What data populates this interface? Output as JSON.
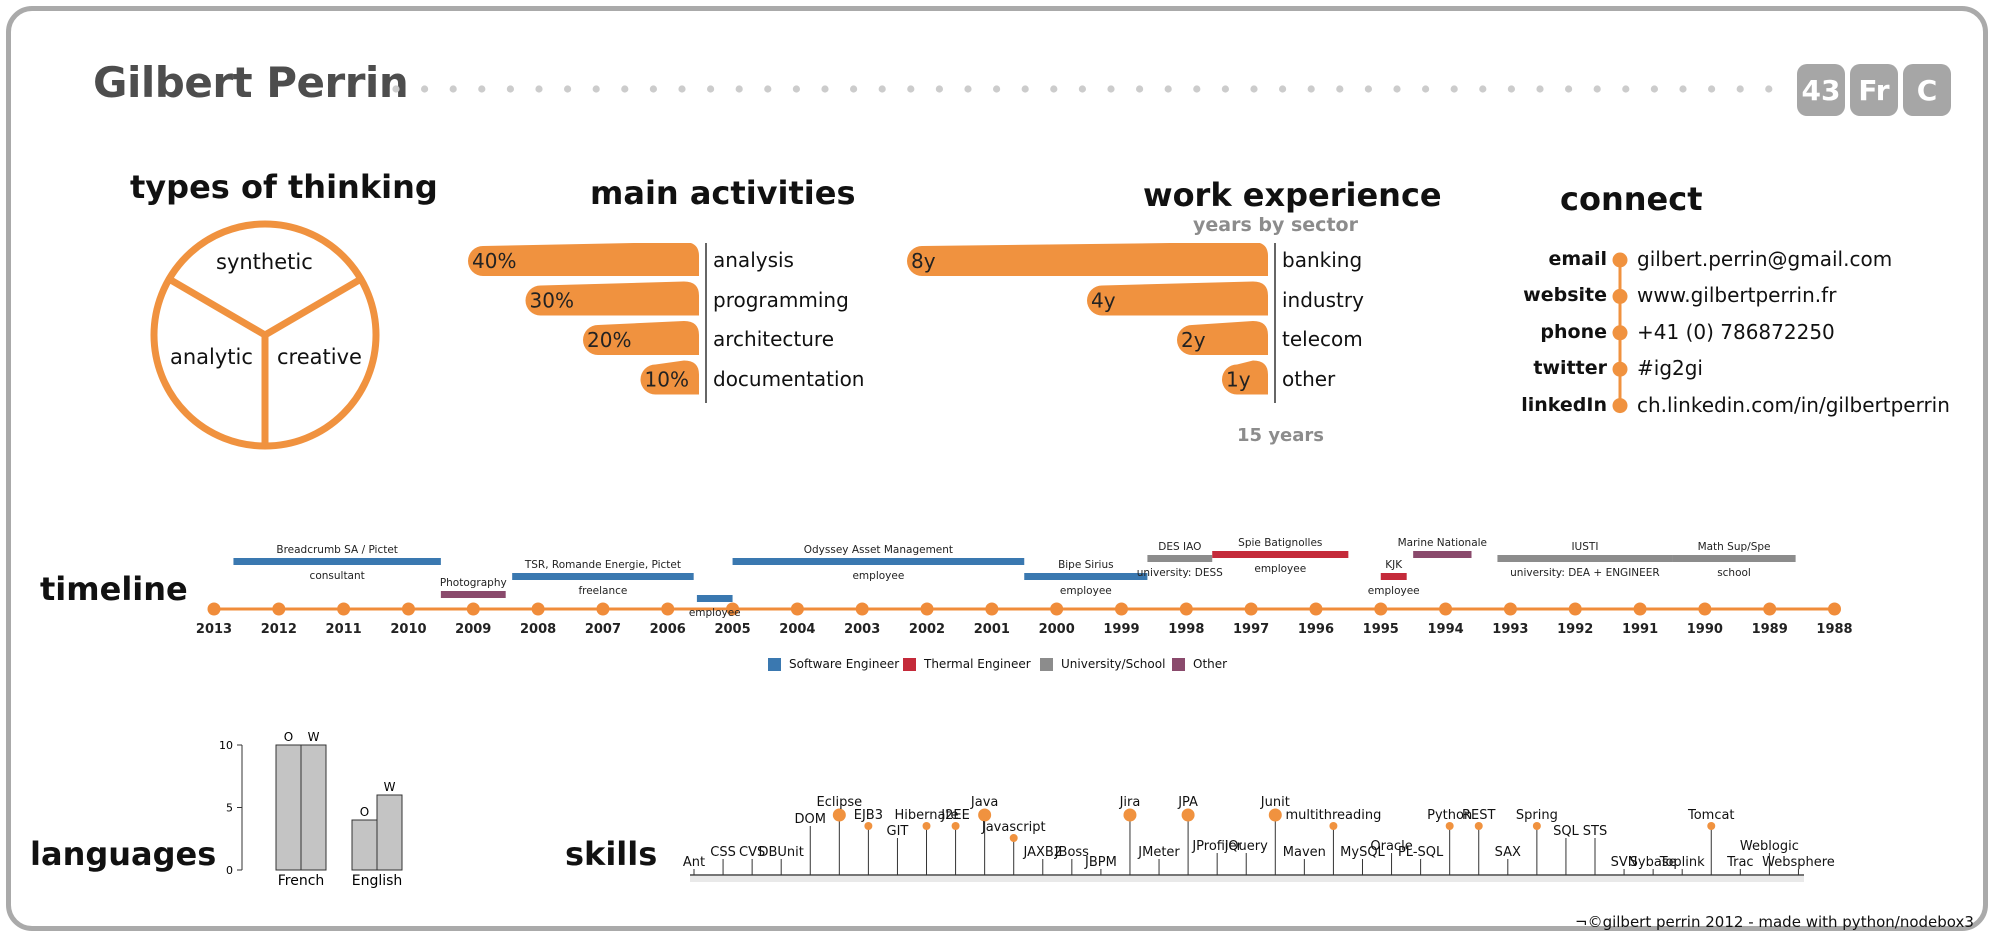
{
  "header": {
    "name": "Gilbert Perrin",
    "badges": [
      "43",
      "Fr",
      "C"
    ]
  },
  "types_of_thinking": {
    "title": "types of thinking",
    "segments": [
      "synthetic",
      "analytic",
      "creative"
    ]
  },
  "main_activities": {
    "title": "main activities",
    "items": [
      {
        "label": "analysis",
        "value": 40,
        "display": "40%"
      },
      {
        "label": "programming",
        "value": 30,
        "display": "30%"
      },
      {
        "label": "architecture",
        "value": 20,
        "display": "20%"
      },
      {
        "label": "documentation",
        "value": 10,
        "display": "10%"
      }
    ]
  },
  "work_experience": {
    "title": "work experience",
    "subtitle": "years by sector",
    "total": "15 years",
    "items": [
      {
        "label": "banking",
        "value": 8,
        "display": "8y"
      },
      {
        "label": "industry",
        "value": 4,
        "display": "4y"
      },
      {
        "label": "telecom",
        "value": 2,
        "display": "2y"
      },
      {
        "label": "other",
        "value": 1,
        "display": "1y"
      }
    ]
  },
  "connect": {
    "title": "connect",
    "items": [
      {
        "label": "email",
        "value": "gilbert.perrin@gmail.com"
      },
      {
        "label": "website",
        "value": "www.gilbertperrin.fr"
      },
      {
        "label": "phone",
        "value": "+41 (0) 786872250"
      },
      {
        "label": "twitter",
        "value": "#ig2gi"
      },
      {
        "label": "linkedIn",
        "value": "ch.linkedin.com/in/gilbertperrin"
      }
    ]
  },
  "timeline": {
    "title": "timeline",
    "years": [
      "2013",
      "2012",
      "2011",
      "2010",
      "2009",
      "2008",
      "2007",
      "2006",
      "2005",
      "2004",
      "2003",
      "2002",
      "2001",
      "2000",
      "1999",
      "1998",
      "1997",
      "1996",
      "1995",
      "1994",
      "1993",
      "1992",
      "1991",
      "1990",
      "1989",
      "1988"
    ],
    "colors": {
      "software": "#3a78b0",
      "thermal": "#c42a3a",
      "school": "#8c8c8c",
      "other": "#8a4a6c",
      "axis": "#f08c3a"
    },
    "entries": [
      {
        "title": "Breadcrumb SA / Pictet",
        "role": "consultant",
        "start": 2012.7,
        "end": 2009.5,
        "category": "software",
        "level": 0
      },
      {
        "title": "Photography",
        "role": "",
        "start": 2009.5,
        "end": 2008.5,
        "category": "other",
        "level": 2
      },
      {
        "title": "TSR, Romande Energie, Pictet",
        "role": "freelance",
        "start": 2008.4,
        "end": 2005.6,
        "category": "software",
        "level": 1
      },
      {
        "title": "",
        "role": "employee",
        "start": 2005.55,
        "end": 2005.0,
        "category": "software",
        "level": 3
      },
      {
        "title": "Odyssey Asset Management",
        "role": "employee",
        "start": 2005.0,
        "end": 2000.5,
        "category": "software",
        "level": 0
      },
      {
        "title": "Bipe Sirius",
        "role": "employee",
        "start": 2000.5,
        "end": 1998.6,
        "category": "software",
        "level": 1
      },
      {
        "title": "DES IAO",
        "role": "university: DESS",
        "start": 1998.6,
        "end": 1997.6,
        "category": "school",
        "level": -1
      },
      {
        "title": "Spie Batignolles",
        "role": "employee",
        "start": 1997.6,
        "end": 1995.5,
        "category": "thermal",
        "level": -2
      },
      {
        "title": "KJK",
        "role": "employee",
        "start": 1995.0,
        "end": 1994.6,
        "category": "thermal",
        "level": 1
      },
      {
        "title": "Marine Nationale",
        "role": "",
        "start": 1994.5,
        "end": 1993.6,
        "category": "other",
        "level": -2
      },
      {
        "title": "IUSTI",
        "role": "university: DEA + ENGINEER",
        "start": 1993.2,
        "end": 1990.5,
        "category": "school",
        "level": -1
      },
      {
        "title": "Math Sup/Spe",
        "role": "school",
        "start": 1990.5,
        "end": 1988.6,
        "category": "school",
        "level": -1
      }
    ],
    "legend": [
      {
        "label": "Software Engineer",
        "color": "#3a78b0"
      },
      {
        "label": "Thermal Engineer",
        "color": "#c42a3a"
      },
      {
        "label": "University/School",
        "color": "#8c8c8c"
      },
      {
        "label": "Other",
        "color": "#8a4a6c"
      }
    ]
  },
  "languages": {
    "title": "languages",
    "ticks": [
      "0",
      "5",
      "10"
    ],
    "items": [
      {
        "label": "French",
        "o": 10,
        "w": 10
      },
      {
        "label": "English",
        "o": 4,
        "w": 6
      }
    ],
    "bar_labels": [
      "O",
      "W"
    ]
  },
  "skills": {
    "title": "skills",
    "items": [
      {
        "name": "Ant",
        "level": 0
      },
      {
        "name": "CSS",
        "level": 1
      },
      {
        "name": "CVS",
        "level": 1
      },
      {
        "name": "DBUnit",
        "level": 1
      },
      {
        "name": "DOM",
        "level": 4
      },
      {
        "name": "Eclipse",
        "level": 5,
        "dot": true,
        "big": true
      },
      {
        "name": "EJB3",
        "level": 4,
        "dot": true
      },
      {
        "name": "GIT",
        "level": 3
      },
      {
        "name": "Hibernate",
        "level": 4,
        "dot": true
      },
      {
        "name": "J2EE",
        "level": 4,
        "dot": true
      },
      {
        "name": "Java",
        "level": 5,
        "dot": true,
        "big": true
      },
      {
        "name": "Javascript",
        "level": 3,
        "dot": true
      },
      {
        "name": "JAXB2",
        "level": 1
      },
      {
        "name": "JBoss",
        "level": 1
      },
      {
        "name": "JBPM",
        "level": 0
      },
      {
        "name": "Jira",
        "level": 5,
        "dot": true,
        "big": true
      },
      {
        "name": "JMeter",
        "level": 1
      },
      {
        "name": "JPA",
        "level": 5,
        "dot": true,
        "big": true
      },
      {
        "name": "JProfiler",
        "level": 2
      },
      {
        "name": "jQuery",
        "level": 2
      },
      {
        "name": "Junit",
        "level": 5,
        "dot": true,
        "big": true
      },
      {
        "name": "Maven",
        "level": 1
      },
      {
        "name": "multithreading",
        "level": 4,
        "dot": true
      },
      {
        "name": "MySQL",
        "level": 1
      },
      {
        "name": "Oracle",
        "level": 2
      },
      {
        "name": "PL-SQL",
        "level": 1
      },
      {
        "name": "Python",
        "level": 4,
        "dot": true
      },
      {
        "name": "REST",
        "level": 4,
        "dot": true
      },
      {
        "name": "SAX",
        "level": 1
      },
      {
        "name": "Spring",
        "level": 4,
        "dot": true
      },
      {
        "name": "SQL",
        "level": 3
      },
      {
        "name": "STS",
        "level": 3
      },
      {
        "name": "SVN",
        "level": 0
      },
      {
        "name": "Sybase",
        "level": 0
      },
      {
        "name": "Toplink",
        "level": 0
      },
      {
        "name": "Tomcat",
        "level": 4,
        "dot": true
      },
      {
        "name": "Trac",
        "level": 0
      },
      {
        "name": "Weblogic",
        "level": 2
      },
      {
        "name": "Websphere",
        "level": 0
      }
    ]
  },
  "footer": "¬©gilbert perrin 2012  -  made with python/nodebox3",
  "colors": {
    "accent": "#f0923f",
    "frame": "#aaaaaa",
    "badge": "#a6a6a6"
  }
}
